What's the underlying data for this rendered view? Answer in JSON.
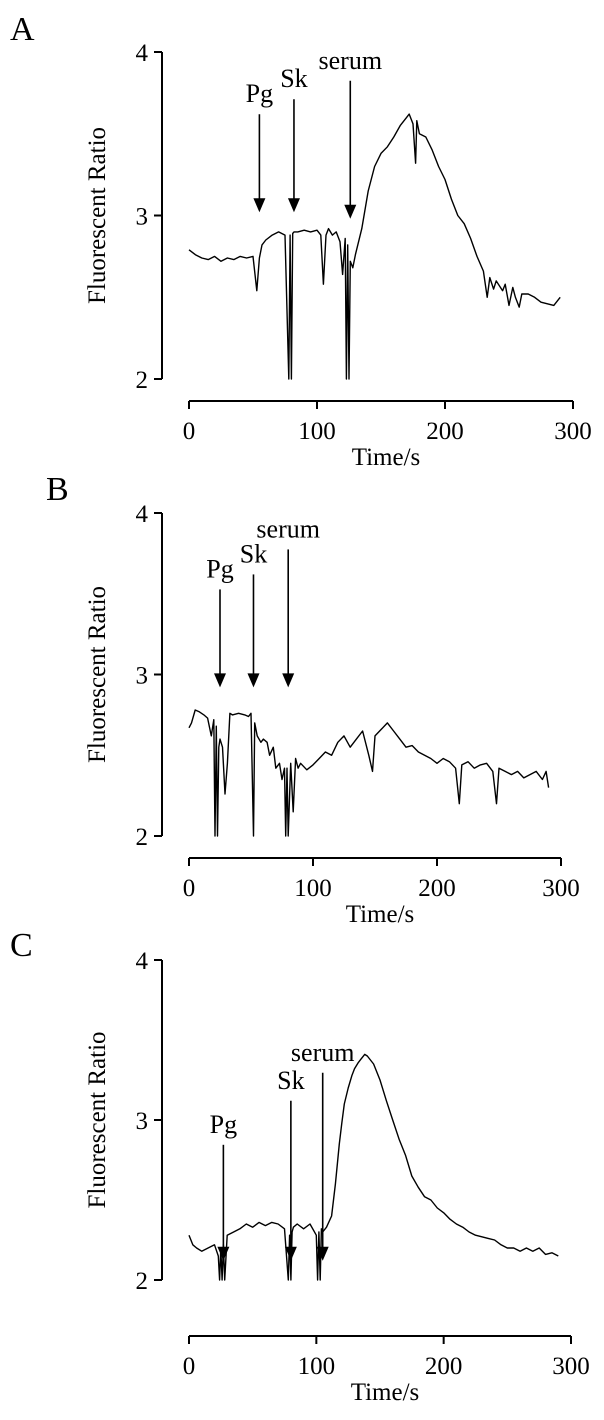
{
  "chart_data": [
    {
      "type": "line",
      "panel_label": "A",
      "xlabel": "Time/s",
      "ylabel": "Fluorescent Ratio",
      "xlim": [
        0,
        300
      ],
      "ylim": [
        2,
        4
      ],
      "xticks": [
        0,
        100,
        200,
        300
      ],
      "yticks": [
        2,
        3,
        4
      ],
      "annotations": [
        {
          "label": "Pg",
          "x": 55,
          "y_tip": 3.02
        },
        {
          "label": "Sk",
          "x": 82,
          "y_tip": 3.02
        },
        {
          "label": "serum",
          "x": 126,
          "y_tip": 2.98
        }
      ],
      "series": [
        {
          "x": [
            0,
            5,
            10,
            15,
            20,
            25,
            30,
            35,
            40,
            45,
            50,
            53,
            55,
            57,
            60,
            65,
            70,
            75,
            78,
            79,
            80,
            81,
            82,
            85,
            90,
            95,
            100,
            103,
            105,
            107,
            109,
            112,
            115,
            118,
            120,
            122,
            123,
            124,
            125,
            126,
            128,
            130,
            135,
            140,
            145,
            150,
            155,
            160,
            165,
            170,
            172,
            175,
            177,
            178,
            180,
            185,
            190,
            195,
            200,
            205,
            210,
            215,
            220,
            225,
            230,
            233,
            235,
            238,
            240,
            245,
            247,
            250,
            253,
            255,
            258,
            260,
            265,
            270,
            275,
            280,
            285,
            290
          ],
          "y": [
            2.79,
            2.76,
            2.74,
            2.73,
            2.75,
            2.72,
            2.74,
            2.73,
            2.75,
            2.74,
            2.75,
            2.54,
            2.74,
            2.82,
            2.85,
            2.88,
            2.9,
            2.88,
            2.0,
            2.88,
            2.0,
            2.89,
            2.9,
            2.9,
            2.91,
            2.9,
            2.91,
            2.88,
            2.58,
            2.88,
            2.92,
            2.88,
            2.9,
            2.84,
            2.64,
            2.86,
            2.0,
            2.82,
            2.0,
            2.72,
            2.68,
            2.76,
            2.92,
            3.15,
            3.3,
            3.38,
            3.42,
            3.48,
            3.55,
            3.6,
            3.62,
            3.56,
            3.32,
            3.58,
            3.5,
            3.48,
            3.4,
            3.3,
            3.22,
            3.1,
            3.0,
            2.95,
            2.86,
            2.75,
            2.66,
            2.5,
            2.62,
            2.55,
            2.6,
            2.54,
            2.58,
            2.45,
            2.56,
            2.5,
            2.44,
            2.52,
            2.52,
            2.5,
            2.47,
            2.46,
            2.45,
            2.5
          ]
        }
      ]
    },
    {
      "type": "line",
      "panel_label": "B",
      "xlabel": "Time/s",
      "ylabel": "Fluorescent Ratio",
      "xlim": [
        0,
        300
      ],
      "ylim": [
        2,
        4
      ],
      "xticks": [
        0,
        100,
        200,
        300
      ],
      "yticks": [
        2,
        3,
        4
      ],
      "annotations": [
        {
          "label": "Pg",
          "x": 25,
          "y_tip": 2.92
        },
        {
          "label": "Sk",
          "x": 52,
          "y_tip": 2.92
        },
        {
          "label": "serum",
          "x": 80,
          "y_tip": 2.92
        }
      ],
      "series": [
        {
          "x": [
            0,
            2,
            5,
            8,
            12,
            15,
            18,
            20,
            21,
            22,
            23,
            24,
            25,
            27,
            29,
            31,
            33,
            35,
            40,
            45,
            48,
            50,
            52,
            53,
            55,
            58,
            60,
            63,
            65,
            68,
            70,
            73,
            75,
            77,
            78,
            79,
            80,
            82,
            84,
            86,
            88,
            90,
            95,
            100,
            105,
            110,
            115,
            120,
            125,
            130,
            135,
            140,
            145,
            148,
            150,
            155,
            160,
            165,
            170,
            175,
            180,
            185,
            190,
            195,
            200,
            205,
            210,
            215,
            218,
            220,
            225,
            230,
            235,
            240,
            245,
            248,
            250,
            255,
            260,
            265,
            270,
            275,
            280,
            285,
            288,
            290
          ],
          "y": [
            2.67,
            2.7,
            2.78,
            2.77,
            2.75,
            2.73,
            2.62,
            2.72,
            2.0,
            2.68,
            2.0,
            2.55,
            2.6,
            2.55,
            2.26,
            2.45,
            2.76,
            2.75,
            2.76,
            2.75,
            2.74,
            2.76,
            2.0,
            2.7,
            2.62,
            2.58,
            2.6,
            2.58,
            2.5,
            2.55,
            2.42,
            2.45,
            2.35,
            2.42,
            2.0,
            2.42,
            2.0,
            2.45,
            2.15,
            2.48,
            2.42,
            2.45,
            2.41,
            2.44,
            2.48,
            2.52,
            2.5,
            2.58,
            2.62,
            2.55,
            2.6,
            2.65,
            2.5,
            2.4,
            2.62,
            2.66,
            2.7,
            2.65,
            2.6,
            2.55,
            2.56,
            2.52,
            2.5,
            2.48,
            2.45,
            2.48,
            2.46,
            2.42,
            2.2,
            2.44,
            2.46,
            2.42,
            2.44,
            2.45,
            2.4,
            2.2,
            2.42,
            2.4,
            2.38,
            2.4,
            2.36,
            2.38,
            2.4,
            2.35,
            2.4,
            2.3
          ]
        }
      ]
    },
    {
      "type": "line",
      "panel_label": "C",
      "xlabel": "Time/s",
      "ylabel": "Fluorescent Ratio",
      "xlim": [
        0,
        300
      ],
      "ylim": [
        2,
        4
      ],
      "xticks": [
        0,
        100,
        200,
        300
      ],
      "yticks": [
        2,
        3,
        4
      ],
      "annotations": [
        {
          "label": "Pg",
          "x": 27,
          "y_tip": 2.12
        },
        {
          "label": "Sk",
          "x": 80,
          "y_tip": 2.12
        },
        {
          "label": "serum",
          "x": 105,
          "y_tip": 2.12
        }
      ],
      "series": [
        {
          "x": [
            0,
            3,
            6,
            10,
            15,
            20,
            23,
            24,
            25,
            26,
            27,
            28,
            30,
            35,
            40,
            45,
            50,
            55,
            60,
            65,
            70,
            75,
            78,
            79,
            80,
            81,
            82,
            85,
            90,
            95,
            100,
            101,
            102,
            103,
            104,
            105,
            108,
            112,
            115,
            118,
            120,
            122,
            125,
            128,
            130,
            133,
            135,
            138,
            140,
            145,
            150,
            155,
            160,
            165,
            170,
            175,
            180,
            185,
            190,
            195,
            200,
            205,
            210,
            215,
            220,
            225,
            230,
            235,
            240,
            245,
            250,
            255,
            260,
            265,
            270,
            275,
            280,
            285,
            290
          ],
          "y": [
            2.28,
            2.22,
            2.2,
            2.18,
            2.2,
            2.22,
            2.15,
            2.0,
            2.2,
            2.0,
            2.22,
            2.0,
            2.28,
            2.3,
            2.32,
            2.35,
            2.33,
            2.36,
            2.34,
            2.36,
            2.35,
            2.32,
            2.0,
            2.28,
            2.0,
            2.3,
            2.33,
            2.35,
            2.32,
            2.35,
            2.28,
            2.0,
            2.3,
            2.0,
            2.32,
            2.3,
            2.33,
            2.4,
            2.6,
            2.85,
            2.98,
            3.1,
            3.2,
            3.28,
            3.32,
            3.36,
            3.38,
            3.41,
            3.4,
            3.35,
            3.25,
            3.12,
            3.0,
            2.88,
            2.78,
            2.65,
            2.58,
            2.52,
            2.5,
            2.45,
            2.42,
            2.38,
            2.35,
            2.33,
            2.3,
            2.28,
            2.27,
            2.26,
            2.25,
            2.22,
            2.2,
            2.2,
            2.18,
            2.2,
            2.18,
            2.2,
            2.16,
            2.17,
            2.15
          ]
        }
      ]
    }
  ]
}
